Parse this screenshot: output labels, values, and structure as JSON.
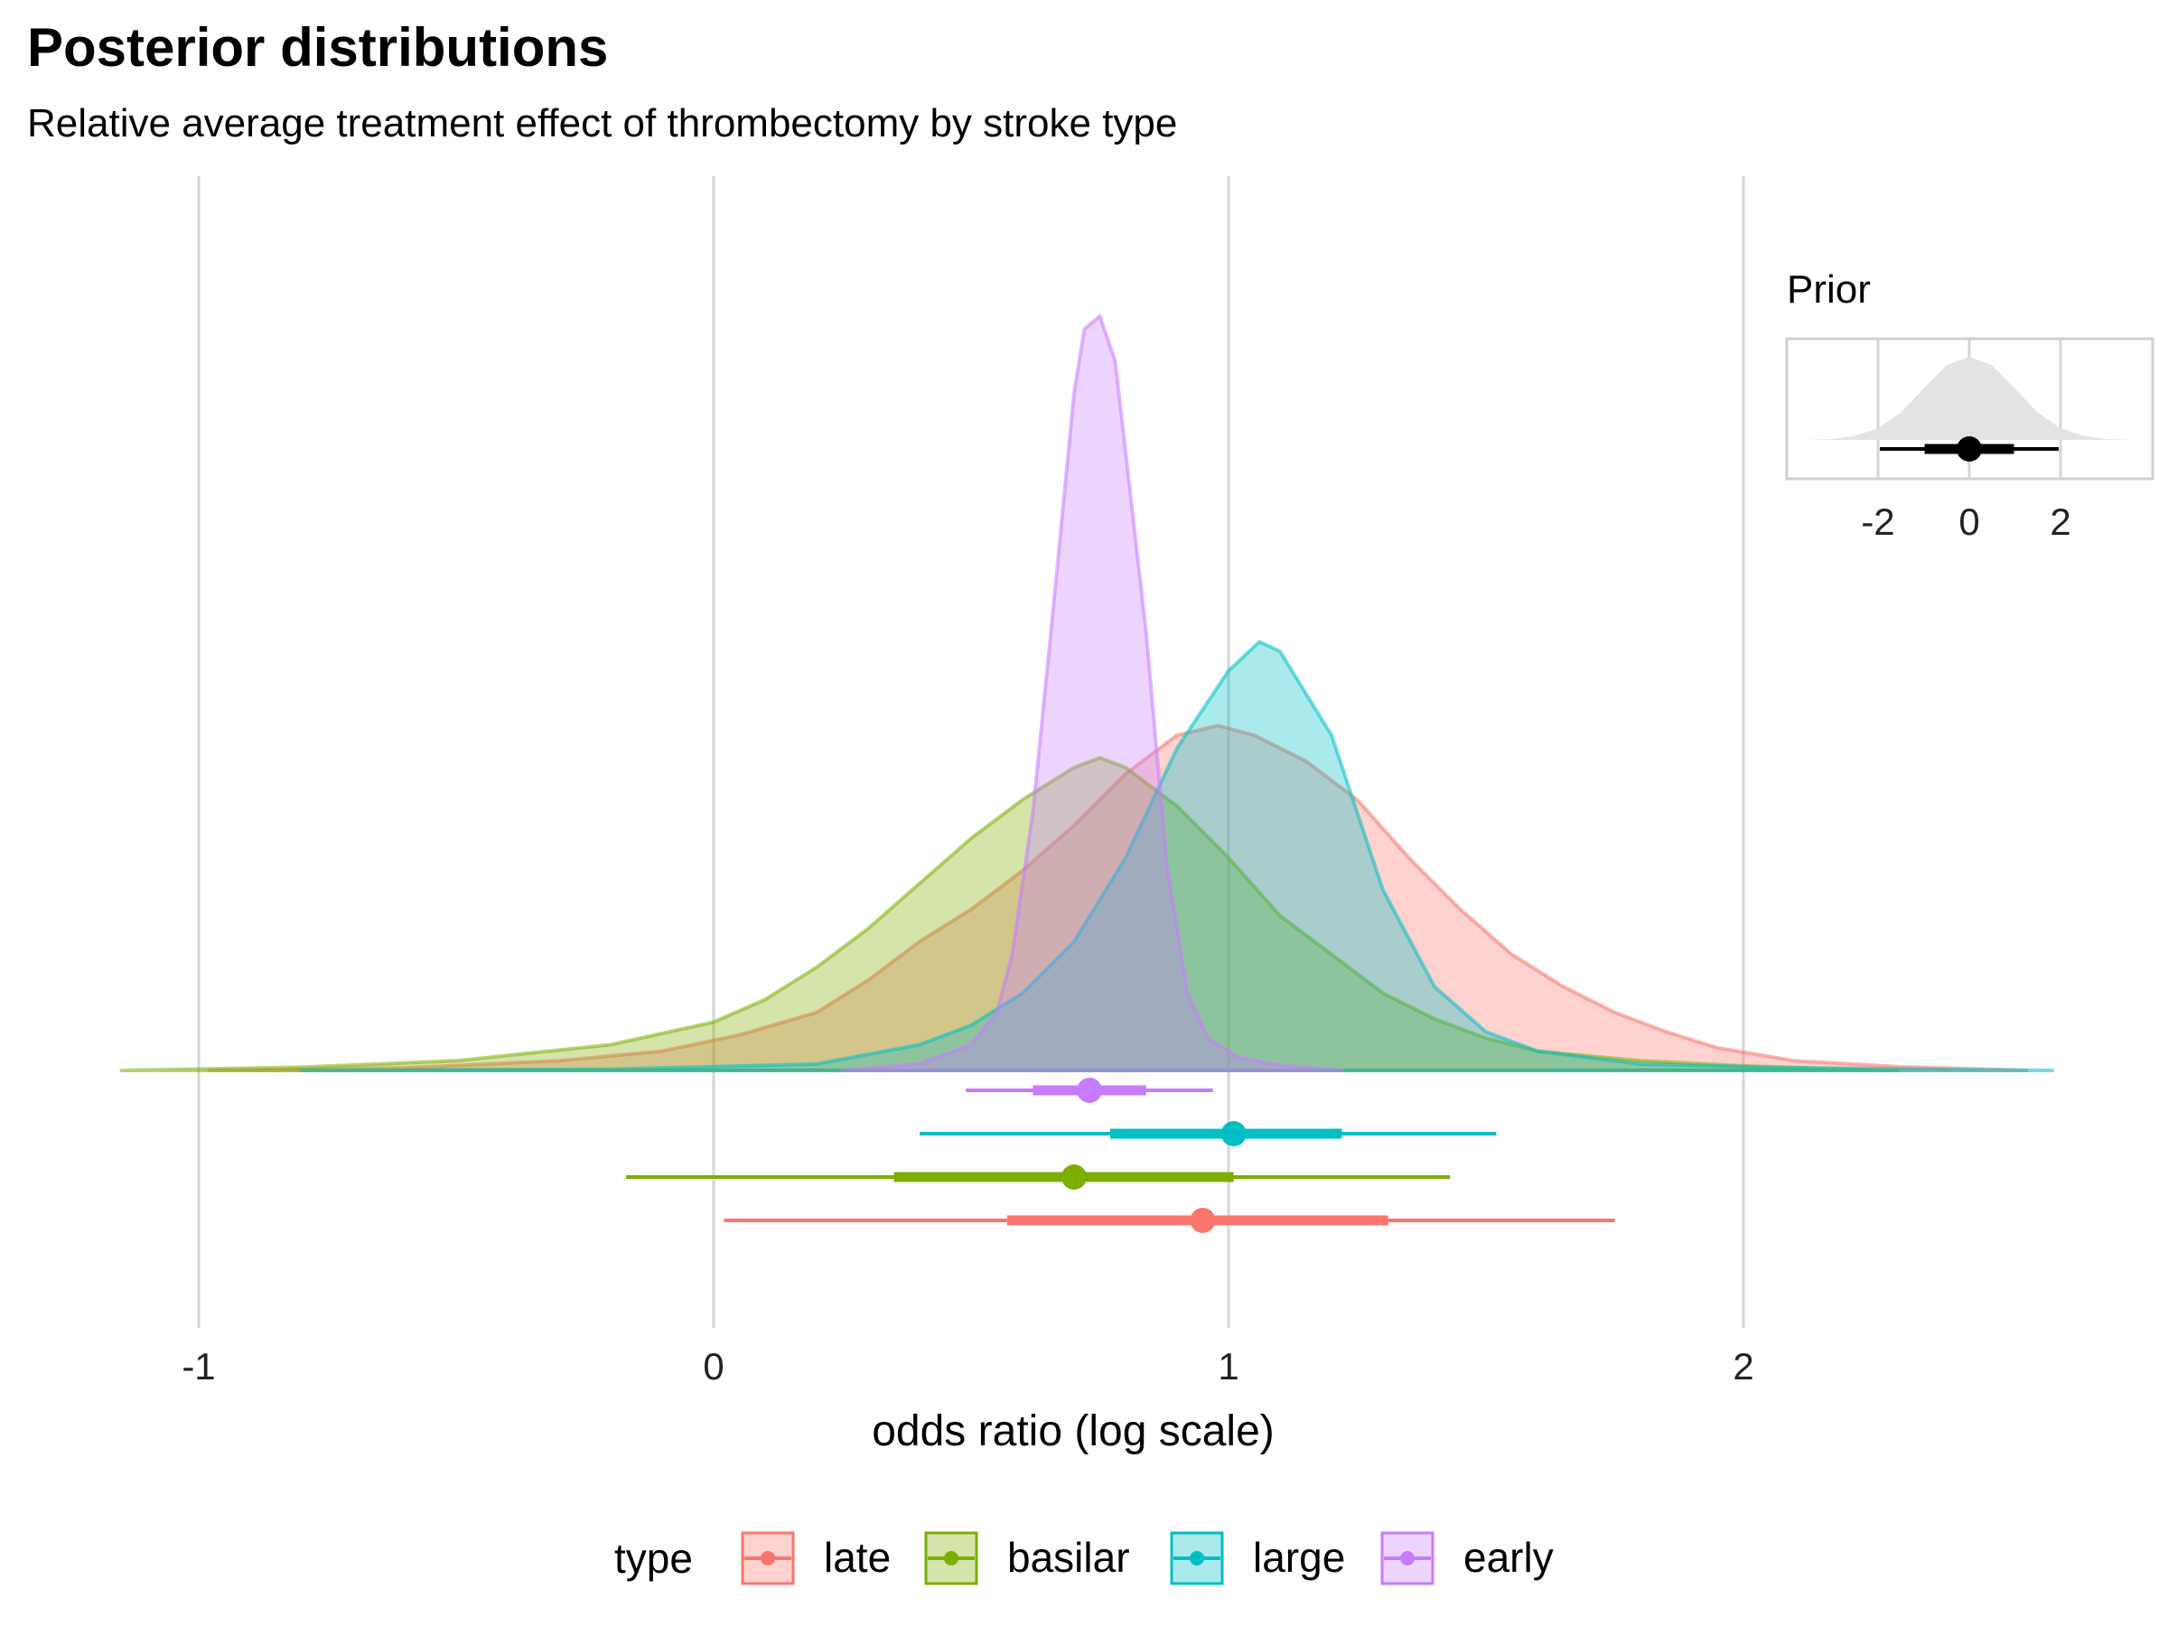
{
  "title": "Posterior distributions",
  "subtitle": "Relative average treatment effect of thrombectomy by stroke type",
  "chart_data": {
    "type": "area",
    "subtype": "posterior densities with interval summaries",
    "xlabel": "odds ratio (log scale)",
    "ylabel": "",
    "xlim": [
      -1.18,
      2.62
    ],
    "x_ticks": [
      -1,
      0,
      1,
      2
    ],
    "x_tick_labels": [
      "-1",
      "0",
      "1",
      "2"
    ],
    "grid": "vertical major gridlines",
    "legend": {
      "title": "type",
      "position": "bottom",
      "entries": [
        "late",
        "basilar",
        "large",
        "early"
      ]
    },
    "series": [
      {
        "name": "late",
        "color": "#F8766D",
        "density": [
          [
            -0.98,
            0.0
          ],
          [
            -0.6,
            0.004
          ],
          [
            -0.3,
            0.015
          ],
          [
            -0.1,
            0.03
          ],
          [
            0.05,
            0.055
          ],
          [
            0.2,
            0.09
          ],
          [
            0.3,
            0.14
          ],
          [
            0.4,
            0.2
          ],
          [
            0.5,
            0.25
          ],
          [
            0.6,
            0.31
          ],
          [
            0.7,
            0.38
          ],
          [
            0.8,
            0.46
          ],
          [
            0.9,
            0.52
          ],
          [
            0.98,
            0.535
          ],
          [
            1.05,
            0.52
          ],
          [
            1.15,
            0.48
          ],
          [
            1.25,
            0.42
          ],
          [
            1.35,
            0.33
          ],
          [
            1.45,
            0.25
          ],
          [
            1.55,
            0.18
          ],
          [
            1.65,
            0.13
          ],
          [
            1.75,
            0.09
          ],
          [
            1.85,
            0.06
          ],
          [
            1.95,
            0.035
          ],
          [
            2.1,
            0.015
          ],
          [
            2.3,
            0.006
          ],
          [
            2.55,
            0.0
          ]
        ],
        "median": 0.95,
        "interval_inner": [
          0.57,
          1.31
        ],
        "interval_outer": [
          0.02,
          1.75
        ]
      },
      {
        "name": "basilar",
        "color": "#7CAE00",
        "density": [
          [
            -1.15,
            0.0
          ],
          [
            -0.8,
            0.005
          ],
          [
            -0.5,
            0.015
          ],
          [
            -0.2,
            0.04
          ],
          [
            0.0,
            0.075
          ],
          [
            0.1,
            0.11
          ],
          [
            0.2,
            0.16
          ],
          [
            0.3,
            0.22
          ],
          [
            0.4,
            0.29
          ],
          [
            0.5,
            0.36
          ],
          [
            0.6,
            0.42
          ],
          [
            0.7,
            0.47
          ],
          [
            0.75,
            0.485
          ],
          [
            0.8,
            0.47
          ],
          [
            0.9,
            0.41
          ],
          [
            1.0,
            0.33
          ],
          [
            1.1,
            0.24
          ],
          [
            1.2,
            0.18
          ],
          [
            1.3,
            0.12
          ],
          [
            1.4,
            0.08
          ],
          [
            1.5,
            0.05
          ],
          [
            1.6,
            0.03
          ],
          [
            1.8,
            0.015
          ],
          [
            2.0,
            0.007
          ],
          [
            2.3,
            0.0
          ]
        ],
        "median": 0.7,
        "interval_inner": [
          0.35,
          1.01
        ],
        "interval_outer": [
          -0.17,
          1.43
        ]
      },
      {
        "name": "large",
        "color": "#00BFC4",
        "density": [
          [
            -0.8,
            0.0
          ],
          [
            -0.2,
            0.002
          ],
          [
            0.2,
            0.01
          ],
          [
            0.4,
            0.04
          ],
          [
            0.5,
            0.07
          ],
          [
            0.6,
            0.12
          ],
          [
            0.7,
            0.2
          ],
          [
            0.8,
            0.33
          ],
          [
            0.9,
            0.5
          ],
          [
            1.0,
            0.62
          ],
          [
            1.06,
            0.665
          ],
          [
            1.1,
            0.65
          ],
          [
            1.2,
            0.52
          ],
          [
            1.3,
            0.28
          ],
          [
            1.4,
            0.13
          ],
          [
            1.5,
            0.06
          ],
          [
            1.6,
            0.03
          ],
          [
            1.8,
            0.01
          ],
          [
            2.1,
            0.004
          ],
          [
            2.6,
            0.0
          ]
        ],
        "median": 1.01,
        "interval_inner": [
          0.77,
          1.22
        ],
        "interval_outer": [
          0.4,
          1.52
        ]
      },
      {
        "name": "early",
        "color": "#C77CFF",
        "density": [
          [
            0.25,
            0.0
          ],
          [
            0.4,
            0.01
          ],
          [
            0.5,
            0.04
          ],
          [
            0.55,
            0.09
          ],
          [
            0.58,
            0.18
          ],
          [
            0.62,
            0.4
          ],
          [
            0.66,
            0.72
          ],
          [
            0.7,
            1.05
          ],
          [
            0.72,
            1.15
          ],
          [
            0.75,
            1.17
          ],
          [
            0.78,
            1.1
          ],
          [
            0.8,
            0.96
          ],
          [
            0.84,
            0.68
          ],
          [
            0.88,
            0.32
          ],
          [
            0.92,
            0.12
          ],
          [
            0.96,
            0.05
          ],
          [
            1.02,
            0.02
          ],
          [
            1.1,
            0.008
          ],
          [
            1.22,
            0.0
          ]
        ],
        "median": 0.73,
        "interval_inner": [
          0.62,
          0.84
        ],
        "interval_outer": [
          0.49,
          0.97
        ]
      }
    ],
    "prior_inset": {
      "title": "Prior",
      "x_ticks": [
        -2,
        0,
        2
      ],
      "x_tick_labels": [
        "-2",
        "0",
        "2"
      ],
      "xlim": [
        -3.6,
        4.0
      ],
      "density": [
        [
          -3.6,
          0.0
        ],
        [
          -3,
          0.01
        ],
        [
          -2.5,
          0.05
        ],
        [
          -2,
          0.14
        ],
        [
          -1.5,
          0.33
        ],
        [
          -1,
          0.62
        ],
        [
          -0.5,
          0.9
        ],
        [
          0,
          1.0
        ],
        [
          0.5,
          0.9
        ],
        [
          1,
          0.62
        ],
        [
          1.5,
          0.33
        ],
        [
          2,
          0.14
        ],
        [
          2.5,
          0.05
        ],
        [
          3,
          0.01
        ],
        [
          3.6,
          0.0
        ]
      ],
      "median": 0,
      "interval_inner": [
        -0.98,
        0.98
      ],
      "interval_outer": [
        -1.96,
        1.96
      ]
    }
  }
}
